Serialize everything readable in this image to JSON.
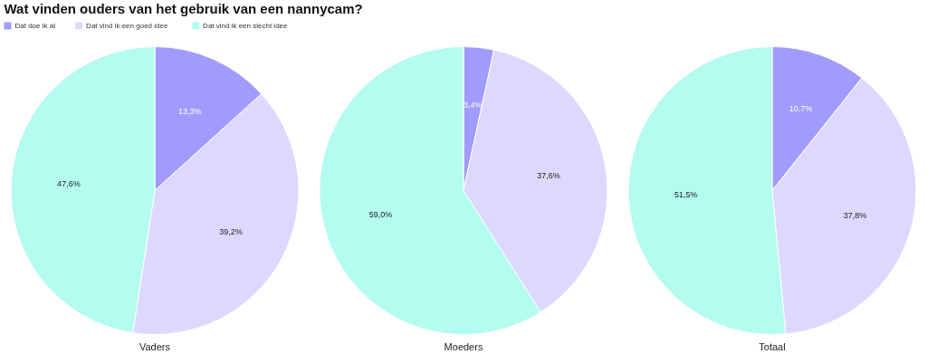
{
  "chart_data": [
    {
      "type": "pie",
      "title": "Wat vinden ouders van het gebruik van een nannycam?",
      "legend": "top left",
      "xlabel": "Vaders",
      "categories": [
        "Dat doe ik al",
        "Dat vind ik een goed idee",
        "Dat vind ik een slecht idee"
      ],
      "values": [
        13.3,
        39.2,
        47.6
      ],
      "colors": [
        "#a29bfe",
        "#ddd8fe",
        "#b3fcef"
      ],
      "value_labels": [
        "13,3%",
        "39,2%",
        "47,6%"
      ]
    },
    {
      "type": "pie",
      "xlabel": "Moeders",
      "categories": [
        null,
        null,
        null
      ],
      "values": [
        3.4,
        37.6,
        59.0
      ],
      "colors": [
        "#a29bfe",
        "#ddd8fe",
        "#b3fcef"
      ],
      "value_labels": [
        "3,4%",
        "37,6%",
        "59,0%"
      ]
    },
    {
      "type": "pie",
      "xlabel": "Totaal",
      "categories": [
        null,
        null,
        null
      ],
      "values": [
        10.7,
        37.8,
        51.5
      ],
      "colors": [
        "#a29bfe",
        "#ddd8fe",
        "#b3fcef"
      ],
      "value_labels": [
        "10,7%",
        "37,8%",
        "51,5%"
      ]
    }
  ]
}
